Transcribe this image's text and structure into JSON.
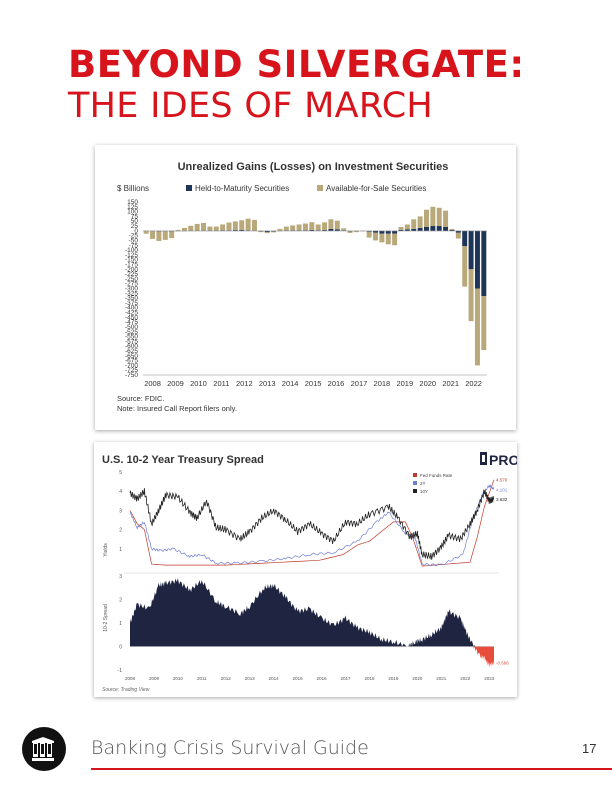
{
  "header": {
    "title_line1": "BEYOND SILVERGATE:",
    "title_line2": "THE IDES OF MARCH"
  },
  "footer": {
    "text": "Banking Crisis Survival Guide",
    "page_number": "17",
    "accent_color": "#d7141c"
  },
  "chart_data": [
    {
      "type": "bar",
      "title": "Unrealized Gains (Losses) on Investment Securities",
      "ylabel": "$ Billions",
      "ylim": [
        -750,
        150
      ],
      "yticks": [
        150,
        125,
        100,
        75,
        50,
        25,
        0,
        -25,
        -50,
        -75,
        -100,
        -125,
        -150,
        -175,
        -200,
        -225,
        -250,
        -275,
        -300,
        -325,
        -350,
        -375,
        -400,
        -425,
        -450,
        -475,
        -500,
        -525,
        -550,
        -575,
        -600,
        -625,
        -650,
        -675,
        -700,
        -725,
        -750
      ],
      "ytick_labels": [
        "150",
        "125",
        "100",
        "75",
        "50",
        "25",
        "0",
        "-25",
        "-50",
        "-75",
        "-100",
        "-125",
        "-150",
        "-175",
        "-200",
        "-225",
        "-250",
        "-275",
        "-300",
        "-325",
        "-350",
        "-375",
        "-400",
        "-425",
        "-450",
        "-475",
        "-500",
        "-525",
        "-550",
        "-575",
        "-600",
        "-625",
        "-650",
        "-675",
        "-700",
        "-725",
        "-750"
      ],
      "year_labels": [
        "2008",
        "2009",
        "2010",
        "2011",
        "2012",
        "2013",
        "2014",
        "2015",
        "2016",
        "2017",
        "2018",
        "2019",
        "2020",
        "2021",
        "2022"
      ],
      "legend": [
        "Held-to-Maturity Securities",
        "Available-for-Sale Securities"
      ],
      "legend_colors": [
        "#1f3557",
        "#b8a87a"
      ],
      "source": "Source: FDIC.",
      "note": "Note: Insured Call Report filers only.",
      "series": [
        {
          "name": "Held-to-Maturity Securities",
          "values": [
            0,
            -2,
            -3,
            -2,
            -3,
            -1,
            0,
            1,
            1,
            1,
            2,
            2,
            3,
            3,
            4,
            5,
            3,
            2,
            -3,
            -6,
            -4,
            0,
            2,
            3,
            3,
            3,
            5,
            3,
            4,
            10,
            8,
            3,
            -3,
            -2,
            0,
            -5,
            -10,
            -15,
            -15,
            -15,
            5,
            8,
            10,
            15,
            20,
            25,
            25,
            20,
            5,
            -10,
            -80,
            -200,
            -300,
            -340
          ]
        },
        {
          "name": "Available-for-Sale Securities",
          "values": [
            -15,
            -40,
            -50,
            -45,
            -35,
            5,
            15,
            25,
            35,
            40,
            20,
            20,
            30,
            40,
            45,
            50,
            60,
            55,
            -4,
            -6,
            -4,
            10,
            20,
            25,
            30,
            35,
            40,
            30,
            40,
            50,
            45,
            10,
            -8,
            -5,
            -2,
            -30,
            -40,
            -45,
            -55,
            -60,
            15,
            25,
            50,
            60,
            90,
            100,
            95,
            85,
            5,
            -30,
            -210,
            -270,
            -400,
            -280
          ]
        }
      ]
    },
    {
      "type": "line",
      "title": "U.S. 10-2 Year Treasury Spread",
      "brand": "PRO",
      "x_ticks": [
        "2008",
        "2009",
        "2010",
        "2011",
        "2012",
        "2013",
        "2014",
        "2015",
        "2016",
        "2017",
        "2018",
        "2019",
        "2020",
        "2021",
        "2022",
        "2023"
      ],
      "top_panel": {
        "ylabel": "Yields",
        "yticks": [
          "5",
          "4",
          "3",
          "2",
          "1"
        ],
        "ylim": [
          0,
          5
        ],
        "legend": [
          "Fed Funds Rate",
          "2Y",
          "10Y"
        ],
        "colors": [
          "#c0392b",
          "#6f7fd4",
          "#222222"
        ],
        "end_labels": [
          "4.570",
          "4.101",
          "3.632"
        ],
        "series": [
          {
            "name": "Fed Funds Rate",
            "x": [
              2008.0,
              2008.3,
              2008.6,
              2008.9,
              2009.5,
              2012,
              2015.9,
              2016.9,
              2017.5,
              2018.0,
              2018.5,
              2019.0,
              2019.5,
              2019.8,
              2020.2,
              2022.2,
              2022.5,
              2022.8,
              2023.2
            ],
            "y": [
              3.0,
              2.3,
              2.0,
              0.2,
              0.15,
              0.15,
              0.4,
              0.7,
              1.2,
              1.4,
              1.9,
              2.4,
              2.4,
              1.6,
              0.1,
              0.3,
              1.6,
              3.2,
              4.6
            ]
          },
          {
            "name": "2Y",
            "x": [
              2008.0,
              2008.3,
              2008.6,
              2008.9,
              2009.3,
              2009.8,
              2010.5,
              2011.0,
              2011.6,
              2012.5,
              2013.5,
              2014.5,
              2015.5,
              2016.5,
              2017.5,
              2018.3,
              2018.8,
              2019.5,
              2019.9,
              2020.2,
              2021.0,
              2021.9,
              2022.3,
              2022.7,
              2023.0,
              2023.2
            ],
            "y": [
              2.9,
              2.1,
              2.4,
              1.0,
              0.9,
              1.0,
              0.6,
              0.7,
              0.25,
              0.25,
              0.35,
              0.5,
              0.7,
              0.8,
              1.4,
              2.4,
              2.9,
              1.8,
              1.6,
              0.2,
              0.15,
              0.7,
              2.5,
              3.8,
              4.3,
              4.1
            ]
          },
          {
            "name": "10Y",
            "x": [
              2008.0,
              2008.3,
              2008.6,
              2008.9,
              2009.2,
              2009.5,
              2010.0,
              2010.5,
              2010.8,
              2011.2,
              2011.6,
              2012.0,
              2012.6,
              2013.0,
              2013.5,
              2014.0,
              2014.5,
              2015.0,
              2015.5,
              2016.0,
              2016.5,
              2017.0,
              2017.5,
              2018.0,
              2018.8,
              2019.2,
              2019.7,
              2020.0,
              2020.2,
              2020.6,
              2021.0,
              2021.3,
              2021.8,
              2022.2,
              2022.5,
              2022.8,
              2023.0,
              2023.2
            ],
            "y": [
              3.9,
              3.6,
              4.0,
              2.3,
              3.0,
              3.8,
              3.7,
              2.9,
              2.6,
              3.5,
              2.1,
              2.0,
              1.5,
              1.9,
              2.6,
              3.0,
              2.5,
              1.9,
              2.3,
              1.8,
              1.4,
              2.4,
              2.3,
              2.8,
              3.2,
              2.6,
              1.6,
              1.8,
              0.7,
              0.6,
              1.1,
              1.7,
              1.5,
              2.3,
              3.0,
              4.0,
              3.5,
              3.6
            ]
          }
        ]
      },
      "bottom_panel": {
        "ylabel": "10-2 Spread",
        "yticks": [
          "3",
          "2",
          "1",
          "0",
          "-1"
        ],
        "ylim": [
          -1,
          3
        ],
        "colors": [
          "#1f2440",
          "#e74c3c"
        ],
        "end_label": "-0.686",
        "series": [
          {
            "name": "10-2 Spread",
            "x": [
              2008.0,
              2008.3,
              2008.8,
              2009.2,
              2009.5,
              2010.0,
              2010.5,
              2011.0,
              2011.6,
              2012.0,
              2012.6,
              2013.0,
              2013.6,
              2014.0,
              2014.5,
              2015.0,
              2015.5,
              2016.0,
              2016.5,
              2017.0,
              2017.5,
              2018.0,
              2018.5,
              2019.0,
              2019.6,
              2019.9,
              2020.2,
              2020.6,
              2021.0,
              2021.3,
              2021.8,
              2022.0,
              2022.3,
              2022.6,
              2022.8,
              2023.0,
              2023.2
            ],
            "y": [
              1.0,
              1.8,
              1.6,
              2.6,
              2.7,
              2.8,
              2.4,
              2.8,
              1.9,
              1.7,
              1.4,
              1.7,
              2.5,
              2.6,
              2.1,
              1.5,
              1.6,
              1.2,
              0.9,
              1.2,
              0.8,
              0.6,
              0.3,
              0.2,
              0.0,
              0.2,
              0.3,
              0.5,
              0.8,
              1.5,
              1.2,
              0.7,
              0.1,
              -0.4,
              -0.5,
              -0.8,
              -0.69
            ]
          }
        ]
      },
      "source": "Source: Trading View"
    }
  ]
}
